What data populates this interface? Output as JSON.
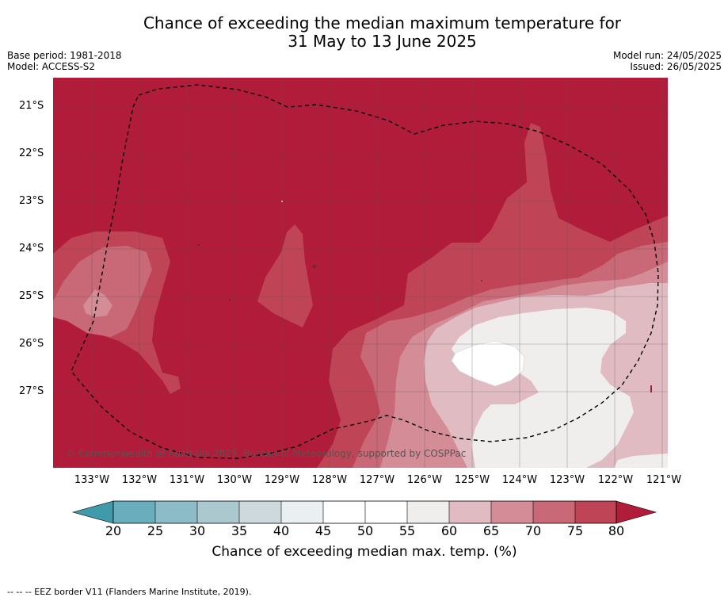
{
  "title": {
    "line1": "Chance of exceeding the median maximum temperature for",
    "line2": "31 May to 13 June 2025"
  },
  "meta_left": {
    "base_period": "Base period: 1981-2018",
    "model": "Model: ACCESS-S2"
  },
  "meta_right": {
    "model_run": "Model run: 24/05/2025",
    "issued": "Issued: 26/05/2025"
  },
  "map": {
    "lat_labels": [
      "21°S",
      "22°S",
      "23°S",
      "24°S",
      "25°S",
      "26°S",
      "27°S"
    ],
    "lon_labels": [
      "133°W",
      "132°W",
      "131°W",
      "130°W",
      "129°W",
      "128°W",
      "127°W",
      "126°W",
      "125°W",
      "124°W",
      "123°W",
      "122°W",
      "121°W"
    ],
    "copyright": "© Commonwealth of Australia 2025, Bureau of Meteorology, supported by COSPPac"
  },
  "colorbar": {
    "title": "Chance of exceeding median max. temp. (%)",
    "ticks": [
      "20",
      "25",
      "30",
      "35",
      "40",
      "45",
      "50",
      "55",
      "60",
      "65",
      "70",
      "75",
      "80"
    ],
    "colors": {
      "below_20": "#3f9aa9",
      "c20_25": "#6aaebd",
      "c25_30": "#8cbcc8",
      "c30_35": "#aac8ce",
      "c35_40": "#cdd9dc",
      "c40_45": "#eaf0f2",
      "c45_50": "#ffffff",
      "c50_55": "#ffffff",
      "c55_60": "#efeeed",
      "c60_65": "#e0bcc2",
      "c65_70": "#d48d97",
      "c70_75": "#c96876",
      "c75_80": "#bf4556",
      "above_80": "#b01c39"
    }
  },
  "footnote": "--  --  -- EEZ border V11 (Flanders Marine Institute, 2019)."
}
